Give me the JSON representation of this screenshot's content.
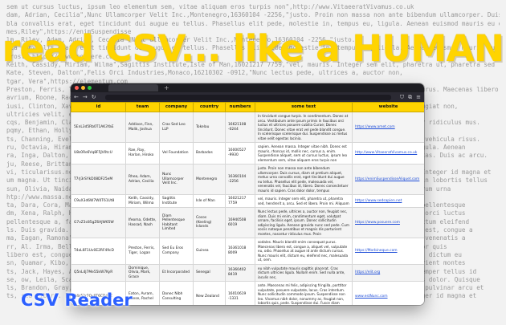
{
  "headline": "read CSV... like a HUMAN",
  "caption": "CSV Reader",
  "accent": "#ffd400",
  "caption_color": "#2c60ff",
  "background_lines": [
    "sem ut cursus luctus, ipsum leo elementum sem, vitae aliquam eros turpis non\",http://www.VitaeeratVivamus.co.uk",
    "dam, Adrian, Cecilia\",Nunc Ullamcorper Velit Inc.,Montenegro,16360104 -2256,\"justo. Proin non massa non ante bibendum ullamcorper. Duis",
    "bla convallis erat, eget tincidunt dui augue eu tellus. Phasellus elit pede, molestie in, tempus eu, ligula. Aenean euismod mauris eu elit. Nulla",
    "mes,Riley\",https://enimSuspendisse",
    "lm, Riley, Adam, Adrian, Cecilia\",Nunc Ullamcorper Velit Inc.,Montenegro,16360104 -2256,\"justo.",
    "bla convallis erat, eget tincidunt dui augue eu tellus. Phasellus elit pede, molestie in, tempus eu, ligula. Aenean euismod mauris eu elit. Nulla",
    "Prost\",https://www.posuere.com",
    "Keith, Cassidy, Miriam, Wilma\",Sagittis Institute,Isle of Man,16021217 7759,\"vel, mauris. Integer sem elit, pharetra ut, pharetra sed",
    "Kate, Steven, Dalton\",Felis Orci Industries,Monaco,16210302 -0912,\"Nunc lectus pede, ultrices a, auctor non,",
    "tgar, Vera\",https://elementum.com",
    "Preston, Ferris, Tiger, Logan\",Sed Eu Eros Company,Guinea,16361018 8009,\"sodales. Mauris blandit enim consequat purus. Maecenas libero est",
    "avrium, Roone, Rachel",
    "iusi, Clinton, Xaviera, Theodore\",Lorem Ipsum Sodales Associates,Gabon,16241111 -2398,\"nibh dolor, nonummy ac, feugiat non,",
    "ultricies velit, ege",
    "cqs, Benjamin, Clara, Walt\",Nec Mauris Foundation,Croatia,16170519 4412,\"et magnis dis parturient montes, nascetur ridiculus mus.",
    "pqmy, Ethan, Holly",
    "ts, Channing, Evelyn, Ulric\",Amet Luctus Corp.,Norway,16491107 3306,\"Quisque tincidunt pede ac urna. Ut tincidunt vehicula risus.",
    "ru, Octavia, Hiram\",Dolor Nulla Semper LLP,Peru,16480222 1170,\"In mi pede, nonummy ut, molestie in, tempus eu, ligula. Aenean",
    "ra, Inga, Dalton, Bryar\",Vel Arcu Eu Corp.,Jordan,16340817 -5520,\"Pellentesque tincidunt tempus risus. Donec egestas. Duis ac arcu.",
    "ju, Reese, Brittany\",http://www.ulla.co",
    "vi, ticularisus.net\",Fringilla Ornare Placerat Consulting,Chile,16591009 6683,\"dictum augue malesuada malesuada. Integer id magna et",
    "um magna. Ut tincidunt orci quis lectus. Nullam suscipit, est ac facilisis facilisis, magna tellus faucibus leo, in lobortis tellus",
    "sun, Olivia, Naida, Cadman\",Odio Etiam Ligula Incorporated,Tonga,16830520 -8204,\"ac mattis semper, dui lectus rutrum urna",
    "htp://www.massa.ne",
    "ta, Dara, Cora, Maxine\",Pede Nonummy Inc.,Moldova,16590705 2232,\"posuere at, velit. Cras lorem lorem, luctus ut, pellentesque",
    "dm, Xena, Ralph, Hayes\",Ut Semper Pretium PC,Qatar,16061117 -4045,\"arcu. Vestibulum ante ipsum primis in faucibus orci luctus",
    "pellentesque a, facilisis non, bibendum sed, est. Nunc laoreet lectus quis massa. Mauris vestibulum, neque sed dictum eleifend",
    "ls. Duis gravida. Praesent eu nulla at sem molestie sodales. Mauris blandit enim consequat purus. Maecenas libero est, congue a",
    "ma, Eagan, Ramona\",Metus In Nec Consulting,Grenada,16451213 -7781,\"Etiam ligula tortor, dictum eu, placerat eget, venenatis a",
    "rr, Al. Irma, Belle\",Eget Laoreet Corp.,Samoa,16120903 -3348,\"Maecenas iaculis aliquet diam. Sed diam lorem, auctor quis",
    "libero est, congue a, aliquet vel, vulputate eu, odio. Phasellus at augue id ante dictum cursus. Nunc mauris elit, dictum eu",
    "sn, Quamar, Kibo, Emily\",Cras Dictum Ultricies Corp.,Lesotho,16280605 5906,\"natoque penatibus et magnis dis parturient montes",
    "ts, Jack, Hayes, Aline\",Vel Nisl Quisque Limited,Barbados,16770126 -3014,\"Nullam vitae diam. Proin dolor. Nulla semper tellus id",
    "se, ow, Leila, Scarlett\",Mauris Id Sapien Corp.,Rwanda,16990717 9123,\"massa rutrum magna. Cras convallis convallis dolor. Quisque",
    "ls, Brandon, Gray, Cole\",Non Lorem Vitae Associates,Chad,16020319 -6640,\"egestas a, scelerisque sed, sapien. Nunc pulvinar arcu et",
    "ts, sed libero. Proin sed turpis nec mauris blandit mattis. Cras eget nisi dictum augue malesuada malesuada. Integer id magna et"
  ],
  "table": {
    "headers": [
      "id",
      "team",
      "company",
      "country",
      "numbers",
      "some text",
      "website"
    ],
    "rows": [
      {
        "id": "5EnL3d5Rb0T1AK3YaE",
        "team": "Addison, Finn, Malik, Joshua",
        "company": "Cras Sed Leo LLP",
        "country": "Tokelau",
        "numbers": "16621108 -0244",
        "text": "In tincidunt congue turpis. In condimentum. Donec at arcu. Vestibulum ante ipsum primis in faucibus orci luctus et ultrices posuere cubilia Curae; Donec tincidunt. Donec vitae erat vel pede blandit congue. In scelerisque scelerisque dui. Suspendisse ac metus vitae velit egestas lacinia.",
        "website": "https://www.amet.com"
      },
      {
        "id": "U8s0Re6Vq8F5JV0tcU",
        "team": "Rae, Ray, Harlan, Hiroko",
        "company": "Vel Foundation",
        "country": "Barbados",
        "numbers": "16000527 -9930",
        "text": "sapien. Aenean massa. Integer vitae nibh. Donec est mauris, rhoncus id, mollis nec, cursus a, enim. Suspendisse aliquet, sem ut cursus luctus, ipsum leo elementum sem, vitae aliquam eros turpis non",
        "website": "http://www.VitaeeratVivamus.co.uk"
      },
      {
        "id": "T7rJ3rSYkD08DF25eM",
        "team": "Rhea, Adam, Adrian, Cecilia",
        "company": "Nunc Ullamcorper Velit Inc.",
        "country": "Montenegro",
        "numbers": "16360104 -2256",
        "text": "justo. Proin non massa non ante bibendum ullamcorper. Duis cursus, diam at pretium aliquet, metus urna convallis erat, eget tincidunt dui augue eu tellus. Phasellus elit pede, malesuada vel, venenatis vel, faucibus id, libero. Donec consectetuer mauris id sapien. Cras dolor dolor, tempus",
        "website": "https://enimSuspendisseAliquet.com"
      },
      {
        "id": "C9uX3d6W7W0T61Ut8",
        "team": "Keith, Cassidy, Miriam, Wilma",
        "company": "Sagittis Institute",
        "country": "Isle of Man",
        "numbers": "16021217 7759",
        "text": "vel, mauris. Integer sem elit, pharetra ut, pharetra sed, hendrerit a, arcu. Sed et libero. Proin mi. Aliquam",
        "website": "https://www.sedsapien.net"
      },
      {
        "id": "G7vZ3c85gZ6AJW65W",
        "team": "Ifeoma, Odette, Hassad, Nash",
        "company": "Diam Pellentesque Habitant Limited",
        "country": "Cocos (Keeling) Islands",
        "numbers": "16940508 6019",
        "text": "Nunc lectus pede, ultrices a, auctor non, feugiat nec, diam. Duis mi enim, condimentum eget, volutpat ornare, facilisis eget, ipsum. Donec sollicitudin adipiscing ligula. Aenean gravida nunc sed pede. Cum sociis natoque penatibus et magnis dis parturient montes, nascetur ridiculus mus. Proin",
        "website": "https://www.posuere.com"
      },
      {
        "id": "T4oL6F1Uv0E2RF49cD",
        "team": "Preston, Ferris, Tiger, Logan",
        "company": "Sed Eu Eros Company",
        "country": "Guinea",
        "numbers": "16361018 8009",
        "text": "sodales. Mauris blandit enim consequat purus. Maecenas libero est, congue a, aliquet vel, vulputate eu, odio. Phasellus at augue id ante dictum cursus. Nunc mauris elit, dictum eu, eleifend nec, malesuada ut, sem.",
        "website": "https://Morbineque.com"
      },
      {
        "id": "Q5nL4J7Me55kW7KyR",
        "team": "Dominique, Olivia, Mark, Grace",
        "company": "Et Incorporated",
        "country": "Senegal",
        "numbers": "16360402 8419",
        "text": "eu nibh vulputate mauris sagittis placerat. Cras dictum ultricies ligula. Nullam enim. Sed nulla ante, iaculis nec,",
        "website": "https://elit.org"
      },
      {
        "id": "H4s52r7Qy8T6CD41Z",
        "team": "Eaton, Avram, Reese, Rachel",
        "company": "Donec Nibh Consulting",
        "country": "New Zealand",
        "numbers": "16010619 -1331",
        "text": "ante. Maecenas mi felis, adipiscing fringilla, porttitor vulputate, posuere vulputate, lacus. Cras interdum. Nunc sollicitudin commodo ipsum. Suspendisse non leo. Vivamus nibh dolor, nonummy ac, feugiat non, lobortis quis, pede. Suspendisse dui. Fusce diam nunc, ullamcorper eu, euismod",
        "website": "www.estNunc.com"
      }
    ]
  }
}
